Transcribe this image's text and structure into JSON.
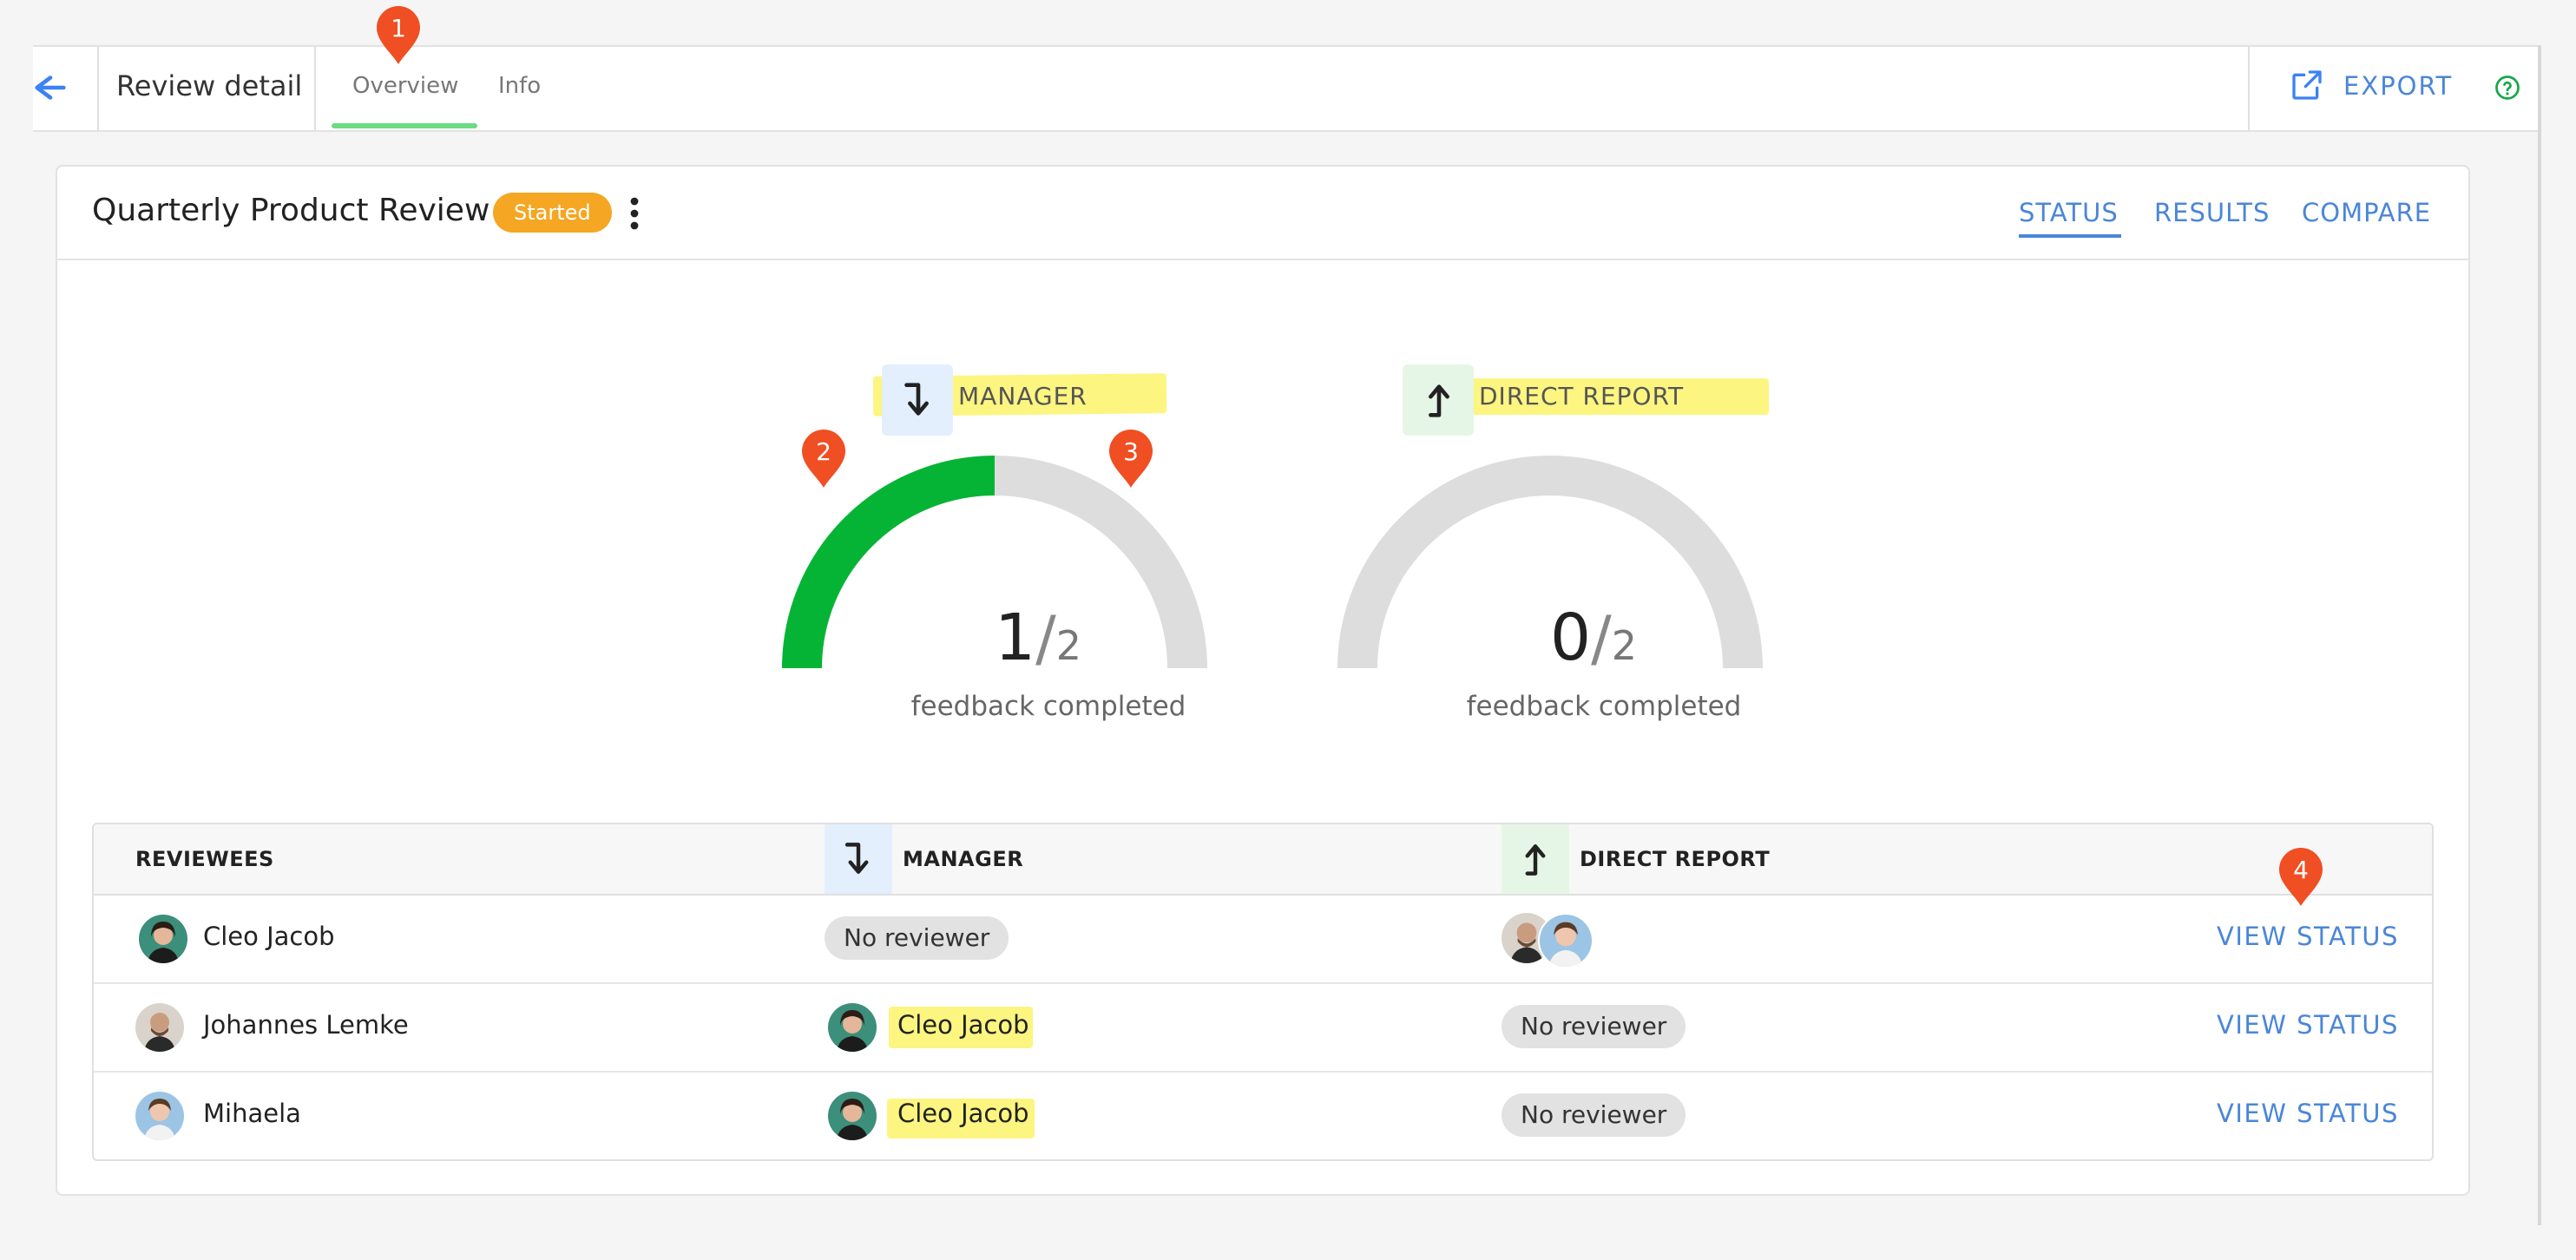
{
  "header": {
    "title": "Review detail",
    "tabs": [
      {
        "label": "Overview",
        "active": true
      },
      {
        "label": "Info",
        "active": false
      }
    ],
    "export_label": "EXPORT"
  },
  "review": {
    "title": "Quarterly Product Review",
    "status": "Started",
    "view_tabs": [
      {
        "label": "STATUS",
        "active": true
      },
      {
        "label": "RESULTS",
        "active": false
      },
      {
        "label": "COMPARE",
        "active": false
      }
    ]
  },
  "gauges": [
    {
      "label": "MANAGER",
      "completed": "1",
      "total": "2",
      "progress": 0.5,
      "caption": "feedback completed",
      "fill_color": "#05b434",
      "track_color": "#dddddd",
      "chip_color": "#e3effc"
    },
    {
      "label": "DIRECT REPORT",
      "completed": "0",
      "total": "2",
      "progress": 0.0,
      "caption": "feedback completed",
      "fill_color": "#05b434",
      "track_color": "#dddddd",
      "chip_color": "#e6f6e6"
    }
  ],
  "table": {
    "columns": [
      "REVIEWEES",
      "MANAGER",
      "DIRECT REPORT"
    ],
    "rows": [
      {
        "reviewee": "Cleo Jacob",
        "manager": "No reviewer",
        "direct_report": "",
        "action": "VIEW STATUS"
      },
      {
        "reviewee": "Johannes Lemke",
        "manager": "Cleo Jacob",
        "direct_report": "No reviewer",
        "action": "VIEW STATUS"
      },
      {
        "reviewee": "Mihaela",
        "manager": "Cleo Jacob",
        "direct_report": "No reviewer",
        "action": "VIEW STATUS"
      }
    ]
  },
  "markers": [
    "1",
    "2",
    "3",
    "4"
  ],
  "icons": {
    "back": "back-arrow-icon",
    "export": "external-link-icon",
    "help": "help-circle-icon",
    "more": "kebab-menu-icon",
    "manager": "arrow-down-turn-icon",
    "direct_report": "arrow-up-turn-icon"
  },
  "colors": {
    "accent": "#4a86d8",
    "status_badge": "#f5a623",
    "marker": "#f04e23",
    "highlight": "#fbf36a"
  }
}
